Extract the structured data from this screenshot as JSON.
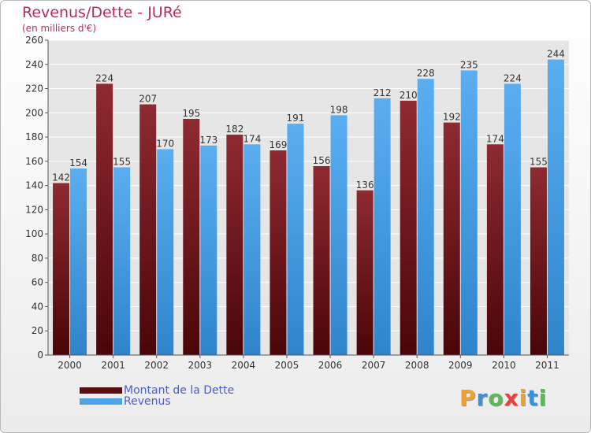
{
  "header": {
    "title": "Revenus/Dette - JURé",
    "subtitle": "(en milliers d'€)"
  },
  "chart_data": {
    "type": "bar",
    "title": "Revenus/Dette - JURé",
    "subtitle": "(en milliers d'€)",
    "xlabel": "",
    "ylabel": "",
    "categories": [
      "2000",
      "2001",
      "2002",
      "2003",
      "2004",
      "2005",
      "2006",
      "2007",
      "2008",
      "2009",
      "2010",
      "2011"
    ],
    "series": [
      {
        "name": "Montant de la Dette",
        "color": "#7b1a1f",
        "values": [
          142,
          224,
          207,
          195,
          182,
          169,
          156,
          136,
          210,
          192,
          174,
          155
        ]
      },
      {
        "name": "Revenus",
        "color": "#4ea3e6",
        "values": [
          154,
          155,
          170,
          173,
          174,
          191,
          198,
          212,
          228,
          235,
          224,
          244
        ]
      }
    ],
    "ylim": [
      0,
      260
    ],
    "yticks": [
      0,
      20,
      40,
      60,
      80,
      100,
      120,
      140,
      160,
      180,
      200,
      220,
      240,
      260
    ],
    "grid": true,
    "legend": "bottom-left"
  },
  "legend": [
    {
      "label": "Montant de la Dette",
      "color": "#5a0e12"
    },
    {
      "label": "Revenus",
      "color": "#4ea3e6"
    }
  ],
  "logo": {
    "letters": [
      "P",
      "r",
      "o",
      "x",
      "i",
      "t",
      "i"
    ],
    "colors": [
      "#f0a030",
      "#3c8fd8",
      "#5cb85c",
      "#e8423a",
      "#f0a030",
      "#3c8fd8",
      "#5cb85c"
    ]
  }
}
